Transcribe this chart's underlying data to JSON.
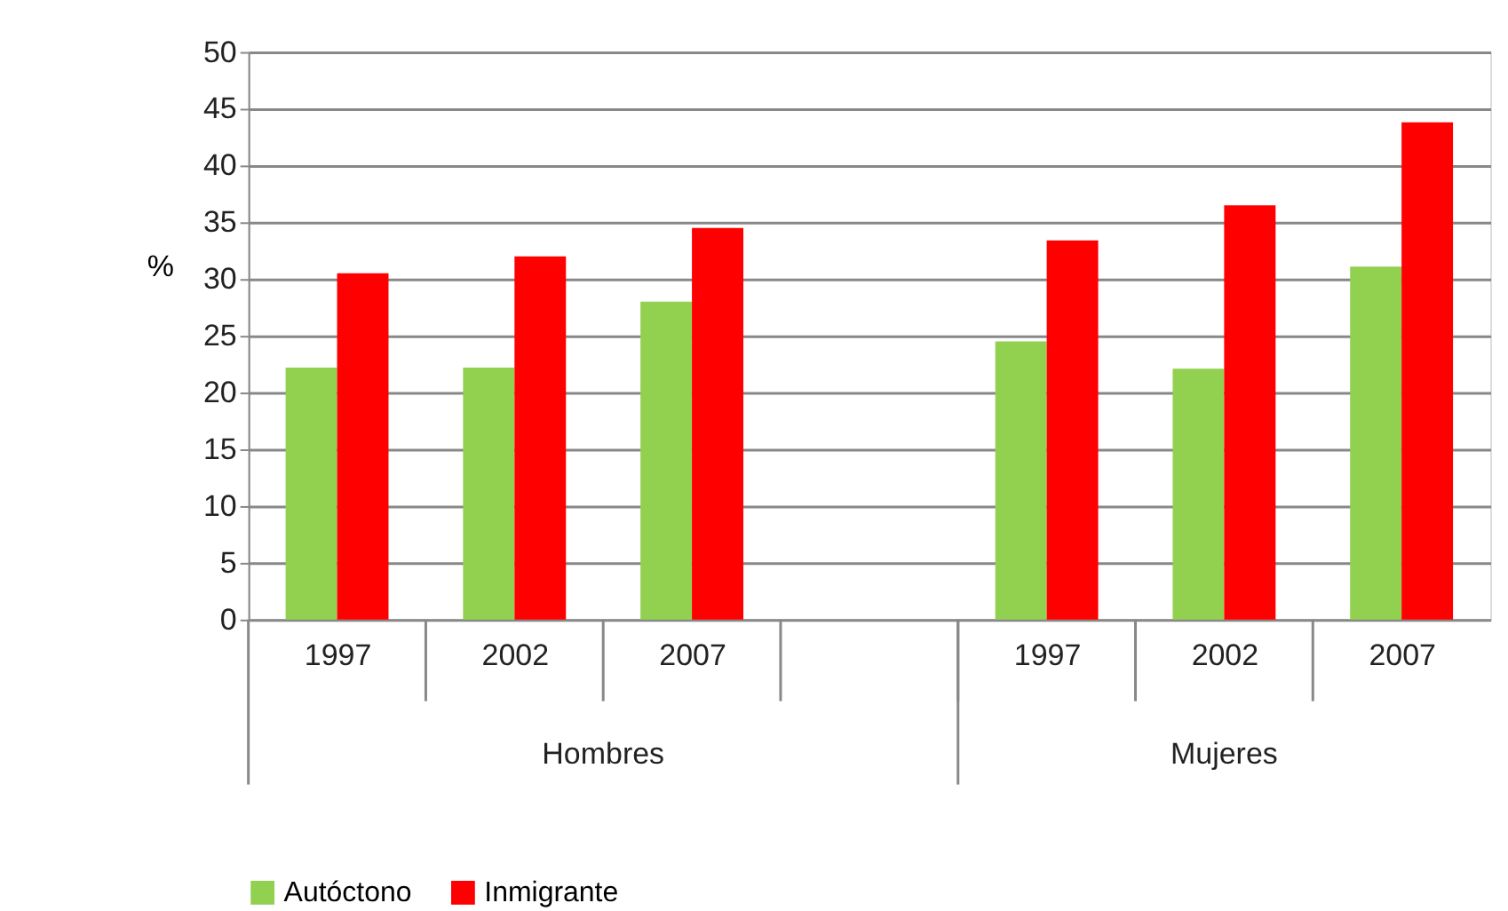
{
  "chart_data": {
    "type": "bar",
    "ylabel": "%",
    "categories": [
      "1997",
      "2002",
      "2007",
      null,
      "1997",
      "2002",
      "2007"
    ],
    "annotations": [
      "Hombres",
      "Mujeres"
    ],
    "series": [
      {
        "name": "Autóctono",
        "color": "#92d050",
        "values": [
          22.2,
          22.2,
          28.0,
          null,
          24.5,
          22.1,
          31.1
        ]
      },
      {
        "name": "Inmigrante",
        "color": "#ff0000",
        "values": [
          30.5,
          32.0,
          34.5,
          null,
          33.4,
          36.5,
          43.8
        ]
      }
    ],
    "ylim": [
      0,
      50
    ],
    "yticks": [
      0,
      5,
      10,
      15,
      20,
      25,
      30,
      35,
      40,
      45,
      50
    ],
    "grid": "y",
    "legend": "bottom"
  }
}
